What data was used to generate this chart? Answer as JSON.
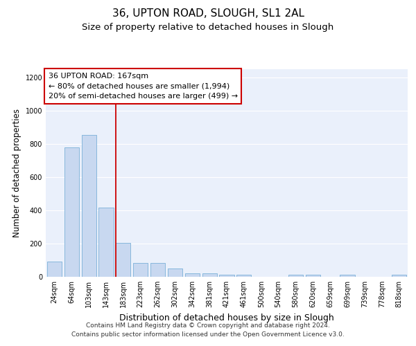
{
  "title_line1": "36, UPTON ROAD, SLOUGH, SL1 2AL",
  "title_line2": "Size of property relative to detached houses in Slough",
  "xlabel": "Distribution of detached houses by size in Slough",
  "ylabel": "Number of detached properties",
  "categories": [
    "24sqm",
    "64sqm",
    "103sqm",
    "143sqm",
    "183sqm",
    "223sqm",
    "262sqm",
    "302sqm",
    "342sqm",
    "381sqm",
    "421sqm",
    "461sqm",
    "500sqm",
    "540sqm",
    "580sqm",
    "620sqm",
    "659sqm",
    "699sqm",
    "739sqm",
    "778sqm",
    "818sqm"
  ],
  "values": [
    90,
    780,
    855,
    415,
    205,
    85,
    85,
    50,
    20,
    20,
    12,
    12,
    0,
    0,
    12,
    12,
    0,
    12,
    0,
    0,
    12
  ],
  "bar_color": "#c8d8f0",
  "bar_edgecolor": "#7ab0d8",
  "bar_width": 0.85,
  "vline_pos": 3.58,
  "vline_color": "#cc0000",
  "annotation_text": "36 UPTON ROAD: 167sqm\n← 80% of detached houses are smaller (1,994)\n20% of semi-detached houses are larger (499) →",
  "annotation_box_color": "#ffffff",
  "annotation_box_edgecolor": "#cc0000",
  "ylim": [
    0,
    1250
  ],
  "yticks": [
    0,
    200,
    400,
    600,
    800,
    1000,
    1200
  ],
  "background_color": "#eaf0fb",
  "grid_color": "#ffffff",
  "footer_text": "Contains HM Land Registry data © Crown copyright and database right 2024.\nContains public sector information licensed under the Open Government Licence v3.0.",
  "title_fontsize": 11,
  "subtitle_fontsize": 9.5,
  "xlabel_fontsize": 9,
  "ylabel_fontsize": 8.5,
  "tick_fontsize": 7,
  "annotation_fontsize": 8,
  "footer_fontsize": 6.5
}
